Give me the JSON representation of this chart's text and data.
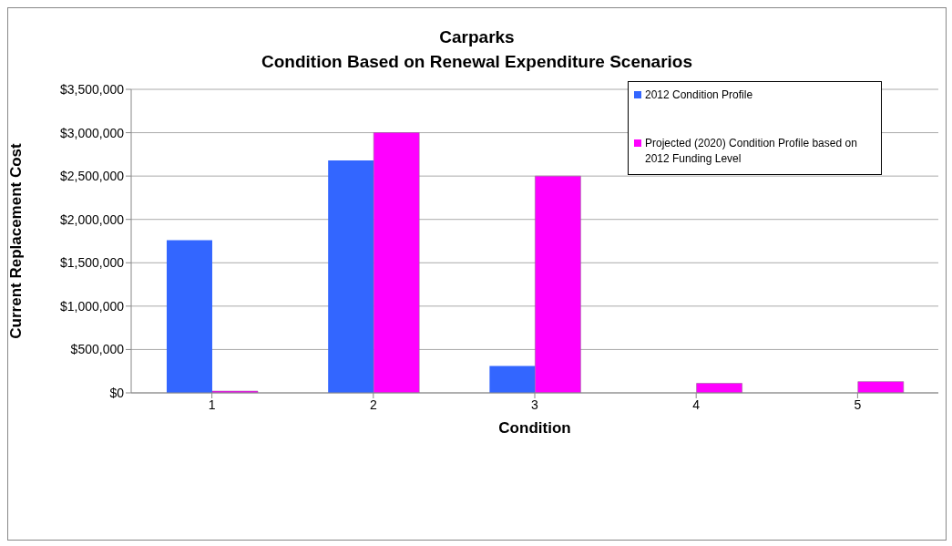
{
  "chart_data": {
    "type": "bar",
    "title": "Carparks\nCondition Based on Renewal Expenditure Scenarios",
    "xlabel": "Condition",
    "ylabel": "Current Replacement Cost",
    "categories": [
      "1",
      "2",
      "3",
      "4",
      "5"
    ],
    "series": [
      {
        "name": "2012 Condition Profile",
        "color": "#3366ff",
        "values": [
          1760000,
          2680000,
          310000,
          0,
          0
        ]
      },
      {
        "name": "Projected (2020) Condition Profile based on 2012 Funding Level",
        "color": "#ff00ff",
        "values": [
          20000,
          3000000,
          2500000,
          110000,
          130000
        ]
      }
    ],
    "ylim": [
      0,
      3500000
    ],
    "yticks": [
      {
        "value": 0,
        "label": "$0"
      },
      {
        "value": 500000,
        "label": "$500,000"
      },
      {
        "value": 1000000,
        "label": "$1,000,000"
      },
      {
        "value": 1500000,
        "label": "$1,500,000"
      },
      {
        "value": 2000000,
        "label": "$2,000,000"
      },
      {
        "value": 2500000,
        "label": "$2,500,000"
      },
      {
        "value": 3000000,
        "label": "$3,000,000"
      },
      {
        "value": 3500000,
        "label": "$3,500,000"
      }
    ],
    "grid": "y",
    "legend": "top right"
  }
}
